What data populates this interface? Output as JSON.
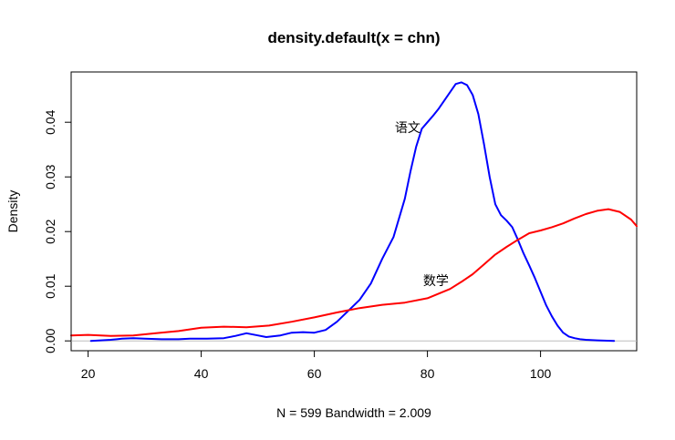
{
  "chart_data": {
    "type": "line",
    "title": "density.default(x = chn)",
    "xlabel": "N = 599   Bandwidth = 2.009",
    "ylabel": "Density",
    "xlim": [
      17,
      117
    ],
    "ylim": [
      -0.0018,
      0.0492
    ],
    "x_ticks": [
      20,
      40,
      60,
      80,
      100
    ],
    "y_ticks": [
      0.0,
      0.01,
      0.02,
      0.03,
      0.04
    ],
    "x_tick_labels": [
      "20",
      "40",
      "60",
      "80",
      "100"
    ],
    "y_tick_labels": [
      "0.00",
      "0.01",
      "0.02",
      "0.03",
      "0.04"
    ],
    "grid": false,
    "legend": "none",
    "zero_line": true,
    "series": [
      {
        "name": "语文",
        "color": "#0000ff",
        "x": [
          20.5,
          24,
          26,
          28,
          30,
          33,
          36,
          38,
          41,
          44,
          46,
          48,
          50,
          51.5,
          54,
          56,
          58,
          60,
          62,
          64,
          66,
          68,
          70,
          72,
          74,
          76,
          77,
          78,
          79,
          80,
          81,
          82,
          83,
          84,
          85,
          86,
          87,
          88,
          89,
          90,
          91,
          92,
          93,
          94,
          95,
          96,
          97,
          98,
          99,
          100,
          101,
          102,
          103,
          104,
          105,
          106,
          107,
          108,
          110,
          113
        ],
        "y": [
          0.0,
          0.0002,
          0.0004,
          0.0005,
          0.0004,
          0.0003,
          0.0003,
          0.0004,
          0.0004,
          0.0005,
          0.0009,
          0.0014,
          0.001,
          0.0007,
          0.001,
          0.0015,
          0.0016,
          0.0015,
          0.002,
          0.0035,
          0.0055,
          0.0075,
          0.0105,
          0.015,
          0.019,
          0.026,
          0.031,
          0.0355,
          0.0388,
          0.04,
          0.0412,
          0.0425,
          0.044,
          0.0455,
          0.047,
          0.0473,
          0.0468,
          0.045,
          0.0415,
          0.036,
          0.03,
          0.025,
          0.023,
          0.022,
          0.0208,
          0.0185,
          0.016,
          0.0138,
          0.0115,
          0.009,
          0.0065,
          0.0045,
          0.0028,
          0.0015,
          0.0008,
          0.0005,
          0.0003,
          0.0002,
          0.0001,
          0.0
        ]
      },
      {
        "name": "数学",
        "color": "#ff0000",
        "x": [
          17,
          20,
          24,
          28,
          32,
          36,
          40,
          44,
          48,
          52,
          56,
          60,
          64,
          68,
          72,
          76,
          80,
          84,
          86,
          88,
          90,
          92,
          94,
          96,
          98,
          100,
          102,
          104,
          106,
          108,
          110,
          112,
          114,
          116,
          117
        ],
        "y": [
          0.001,
          0.0011,
          0.0009,
          0.001,
          0.0014,
          0.0018,
          0.0024,
          0.0026,
          0.0025,
          0.0028,
          0.0035,
          0.0043,
          0.0052,
          0.006,
          0.0066,
          0.007,
          0.0078,
          0.0095,
          0.0108,
          0.0122,
          0.014,
          0.0158,
          0.0172,
          0.0185,
          0.0197,
          0.0202,
          0.0208,
          0.0215,
          0.0224,
          0.0232,
          0.0238,
          0.0241,
          0.0236,
          0.0222,
          0.021
        ]
      }
    ],
    "annotations": [
      {
        "text": "语文",
        "x": 76.5,
        "y": 0.039
      },
      {
        "text": "数学",
        "x": 81.5,
        "y": 0.011
      }
    ]
  }
}
